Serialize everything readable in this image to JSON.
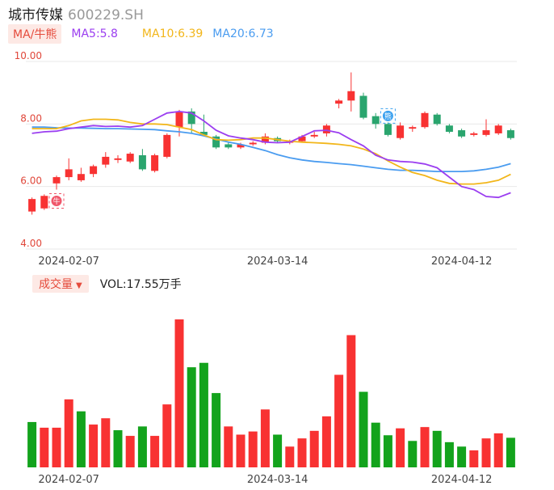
{
  "header": {
    "name": "城市传媒",
    "code": "600229.SH"
  },
  "ma_legend": {
    "tag": "MA/牛熊",
    "ma5": "MA5:5.8",
    "ma10": "MA10:6.39",
    "ma20": "MA20:6.73"
  },
  "volume_legend": {
    "tag": "成交量",
    "arrow": "▼",
    "value": "VOL:17.55万手"
  },
  "colors": {
    "up": "#f83232",
    "down": "#2aa56e",
    "vol_down": "#13a31c",
    "ma5": "#9b3ef0",
    "ma10": "#f2b61a",
    "ma20": "#4a9cf0",
    "axis_text": "#e0473a"
  },
  "chart_data": [
    {
      "type": "candlestick",
      "y_ticks": [
        "10.00",
        "8.00",
        "6.00",
        "4.00"
      ],
      "ylim": [
        4.0,
        10.0
      ],
      "x_ticks": [
        {
          "label": "2024-02-07",
          "index": 3
        },
        {
          "label": "2024-03-14",
          "index": 20
        },
        {
          "label": "2024-04-12",
          "index": 35
        }
      ],
      "markers": [
        {
          "index": 2,
          "text": "牛",
          "type": "bull"
        },
        {
          "index": 29,
          "text": "熊",
          "type": "bear"
        }
      ],
      "candles": [
        {
          "o": 5.2,
          "c": 5.6,
          "h": 5.65,
          "l": 5.1
        },
        {
          "o": 5.3,
          "c": 5.7,
          "h": 5.75,
          "l": 5.25
        },
        {
          "o": 6.1,
          "c": 6.3,
          "h": 6.35,
          "l": 5.9
        },
        {
          "o": 6.3,
          "c": 6.55,
          "h": 6.9,
          "l": 6.2
        },
        {
          "o": 6.2,
          "c": 6.4,
          "h": 6.6,
          "l": 6.15
        },
        {
          "o": 6.4,
          "c": 6.65,
          "h": 6.7,
          "l": 6.3
        },
        {
          "o": 6.7,
          "c": 6.95,
          "h": 7.1,
          "l": 6.6
        },
        {
          "o": 6.85,
          "c": 6.9,
          "h": 7.0,
          "l": 6.75
        },
        {
          "o": 6.8,
          "c": 7.05,
          "h": 7.1,
          "l": 6.75
        },
        {
          "o": 7.0,
          "c": 6.55,
          "h": 7.2,
          "l": 6.5
        },
        {
          "o": 6.5,
          "c": 7.0,
          "h": 7.05,
          "l": 6.45
        },
        {
          "o": 6.95,
          "c": 7.65,
          "h": 7.7,
          "l": 6.9
        },
        {
          "o": 7.9,
          "c": 8.4,
          "h": 8.45,
          "l": 7.6
        },
        {
          "o": 8.4,
          "c": 8.0,
          "h": 8.5,
          "l": 7.7
        },
        {
          "o": 7.75,
          "c": 7.65,
          "h": 8.3,
          "l": 7.6
        },
        {
          "o": 7.6,
          "c": 7.25,
          "h": 7.65,
          "l": 7.2
        },
        {
          "o": 7.35,
          "c": 7.25,
          "h": 7.4,
          "l": 7.2
        },
        {
          "o": 7.25,
          "c": 7.35,
          "h": 7.4,
          "l": 7.2
        },
        {
          "o": 7.35,
          "c": 7.4,
          "h": 7.45,
          "l": 7.3
        },
        {
          "o": 7.4,
          "c": 7.6,
          "h": 7.7,
          "l": 7.35
        },
        {
          "o": 7.55,
          "c": 7.45,
          "h": 7.6,
          "l": 7.4
        },
        {
          "o": 7.4,
          "c": 7.45,
          "h": 7.5,
          "l": 7.35
        },
        {
          "o": 7.45,
          "c": 7.6,
          "h": 7.65,
          "l": 7.4
        },
        {
          "o": 7.6,
          "c": 7.65,
          "h": 7.75,
          "l": 7.55
        },
        {
          "o": 7.7,
          "c": 7.95,
          "h": 8.0,
          "l": 7.6
        },
        {
          "o": 8.65,
          "c": 8.75,
          "h": 8.8,
          "l": 8.5
        },
        {
          "o": 8.75,
          "c": 9.05,
          "h": 9.65,
          "l": 8.4
        },
        {
          "o": 8.9,
          "c": 8.2,
          "h": 9.0,
          "l": 8.15
        },
        {
          "o": 8.25,
          "c": 8.0,
          "h": 8.35,
          "l": 7.85
        },
        {
          "o": 8.0,
          "c": 7.65,
          "h": 8.05,
          "l": 7.6
        },
        {
          "o": 7.55,
          "c": 7.95,
          "h": 8.05,
          "l": 7.5
        },
        {
          "o": 7.85,
          "c": 7.9,
          "h": 7.95,
          "l": 7.75
        },
        {
          "o": 7.9,
          "c": 8.35,
          "h": 8.4,
          "l": 7.85
        },
        {
          "o": 8.3,
          "c": 8.0,
          "h": 8.35,
          "l": 7.95
        },
        {
          "o": 7.95,
          "c": 7.75,
          "h": 8.0,
          "l": 7.7
        },
        {
          "o": 7.8,
          "c": 7.6,
          "h": 7.85,
          "l": 7.55
        },
        {
          "o": 7.65,
          "c": 7.7,
          "h": 7.75,
          "l": 7.6
        },
        {
          "o": 7.65,
          "c": 7.8,
          "h": 8.15,
          "l": 7.6
        },
        {
          "o": 7.7,
          "c": 7.95,
          "h": 8.0,
          "l": 7.65
        },
        {
          "o": 7.8,
          "c": 7.55,
          "h": 7.85,
          "l": 7.5
        }
      ],
      "ma5": [
        7.7,
        7.75,
        7.77,
        7.85,
        7.9,
        7.95,
        7.92,
        7.93,
        7.9,
        7.95,
        8.15,
        8.35,
        8.4,
        8.35,
        8.1,
        7.8,
        7.62,
        7.55,
        7.5,
        7.42,
        7.4,
        7.42,
        7.6,
        7.78,
        7.8,
        7.72,
        7.5,
        7.3,
        7.0,
        6.85,
        6.8,
        6.78,
        6.72,
        6.6,
        6.3,
        6.0,
        5.9,
        5.68,
        5.65,
        5.8
      ],
      "ma10": [
        7.85,
        7.85,
        7.85,
        7.95,
        8.1,
        8.15,
        8.15,
        8.13,
        8.05,
        8.0,
        8.0,
        7.98,
        7.9,
        7.82,
        7.65,
        7.5,
        7.48,
        7.5,
        7.55,
        7.55,
        7.5,
        7.45,
        7.42,
        7.4,
        7.38,
        7.35,
        7.3,
        7.2,
        7.05,
        6.82,
        6.62,
        6.45,
        6.35,
        6.2,
        6.1,
        6.08,
        6.08,
        6.12,
        6.2,
        6.39
      ],
      "ma20": [
        7.9,
        7.9,
        7.88,
        7.87,
        7.87,
        7.86,
        7.85,
        7.85,
        7.84,
        7.83,
        7.82,
        7.78,
        7.75,
        7.7,
        7.62,
        7.52,
        7.42,
        7.35,
        7.25,
        7.15,
        7.02,
        6.92,
        6.85,
        6.8,
        6.77,
        6.73,
        6.7,
        6.65,
        6.6,
        6.55,
        6.52,
        6.52,
        6.5,
        6.48,
        6.48,
        6.48,
        6.5,
        6.55,
        6.62,
        6.73
      ]
    },
    {
      "type": "bar",
      "title": "成交量",
      "x_ticks": [
        "2024-02-07",
        "2024-03-14",
        "2024-04-12"
      ],
      "values": [
        7.2,
        6.3,
        6.3,
        10.8,
        8.9,
        6.8,
        7.8,
        5.9,
        5.0,
        6.5,
        5.0,
        10.0,
        23.5,
        15.9,
        16.6,
        11.8,
        6.5,
        5.2,
        5.7,
        9.2,
        5.2,
        3.3,
        4.6,
        5.8,
        8.1,
        14.7,
        21.0,
        12.0,
        7.1,
        5.1,
        6.2,
        4.2,
        6.4,
        5.8,
        4.0,
        3.3,
        2.7,
        4.6,
        5.4,
        4.7
      ],
      "direction": [
        "down",
        "up",
        "up",
        "up",
        "down",
        "up",
        "up",
        "down",
        "up",
        "down",
        "up",
        "up",
        "up",
        "down",
        "down",
        "down",
        "up",
        "up",
        "up",
        "up",
        "down",
        "up",
        "up",
        "up",
        "up",
        "up",
        "up",
        "down",
        "down",
        "down",
        "up",
        "down",
        "up",
        "down",
        "down",
        "down",
        "up",
        "up",
        "up",
        "down"
      ]
    }
  ]
}
